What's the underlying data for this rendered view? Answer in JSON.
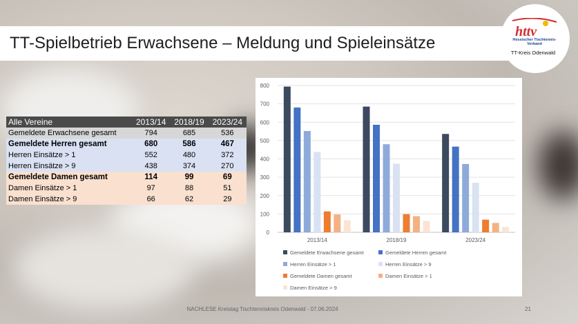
{
  "title": "TT-Spielbetrieb Erwachsene – Meldung und Spieleinsätze",
  "logo": {
    "mark": "httv",
    "subtitle": "Hessischer Tischtennis-Verband",
    "kreis": "TT-Kreis Odenwald"
  },
  "table": {
    "header": [
      "Alle Vereine",
      "2013/14",
      "2018/19",
      "2023/24"
    ],
    "rows": [
      {
        "label": "Gemeldete Erwachsene gesamt",
        "values": [
          "794",
          "685",
          "536"
        ]
      },
      {
        "label": "Gemeldete Herren gesamt",
        "values": [
          "680",
          "586",
          "467"
        ]
      },
      {
        "label": "Herren Einsätze > 1",
        "values": [
          "552",
          "480",
          "372"
        ]
      },
      {
        "label": "Herren Einsätze > 9",
        "values": [
          "438",
          "374",
          "270"
        ]
      },
      {
        "label": "Gemeldete Damen gesamt",
        "values": [
          "114",
          "99",
          "69"
        ]
      },
      {
        "label": "Damen Einsätze > 1",
        "values": [
          "97",
          "88",
          "51"
        ]
      },
      {
        "label": "Damen Einsätze > 9",
        "values": [
          "66",
          "62",
          "29"
        ]
      }
    ]
  },
  "chart_data": {
    "type": "bar",
    "categories": [
      "2013/14",
      "2018/19",
      "2023/24"
    ],
    "ylim": [
      0,
      800
    ],
    "yticks": [
      0,
      100,
      200,
      300,
      400,
      500,
      600,
      700,
      800
    ],
    "grid": true,
    "legend": "bottom",
    "series": [
      {
        "name": "Gemeldete Erwachsene gesamt",
        "color": "#3b4a5e",
        "values": [
          794,
          685,
          536
        ]
      },
      {
        "name": "Gemeldete Herren gesamt",
        "color": "#4472c4",
        "values": [
          680,
          586,
          467
        ]
      },
      {
        "name": "Herren Einsätze > 1",
        "color": "#8eaadb",
        "values": [
          552,
          480,
          372
        ]
      },
      {
        "name": "Herren Einsätze > 9",
        "color": "#d9e2f3",
        "values": [
          438,
          374,
          270
        ]
      },
      {
        "name": "Gemeldete Damen gesamt",
        "color": "#ed7d31",
        "values": [
          114,
          99,
          69
        ]
      },
      {
        "name": "Damen Einsätze > 1",
        "color": "#f4b183",
        "values": [
          97,
          88,
          51
        ]
      },
      {
        "name": "Damen Einsätze > 9",
        "color": "#fbe4d5",
        "values": [
          66,
          62,
          29
        ]
      }
    ]
  },
  "footer": "NACHLESE Kreistag Tischtenniskreis Odenwald - 07.06.2024",
  "page_number": "21"
}
